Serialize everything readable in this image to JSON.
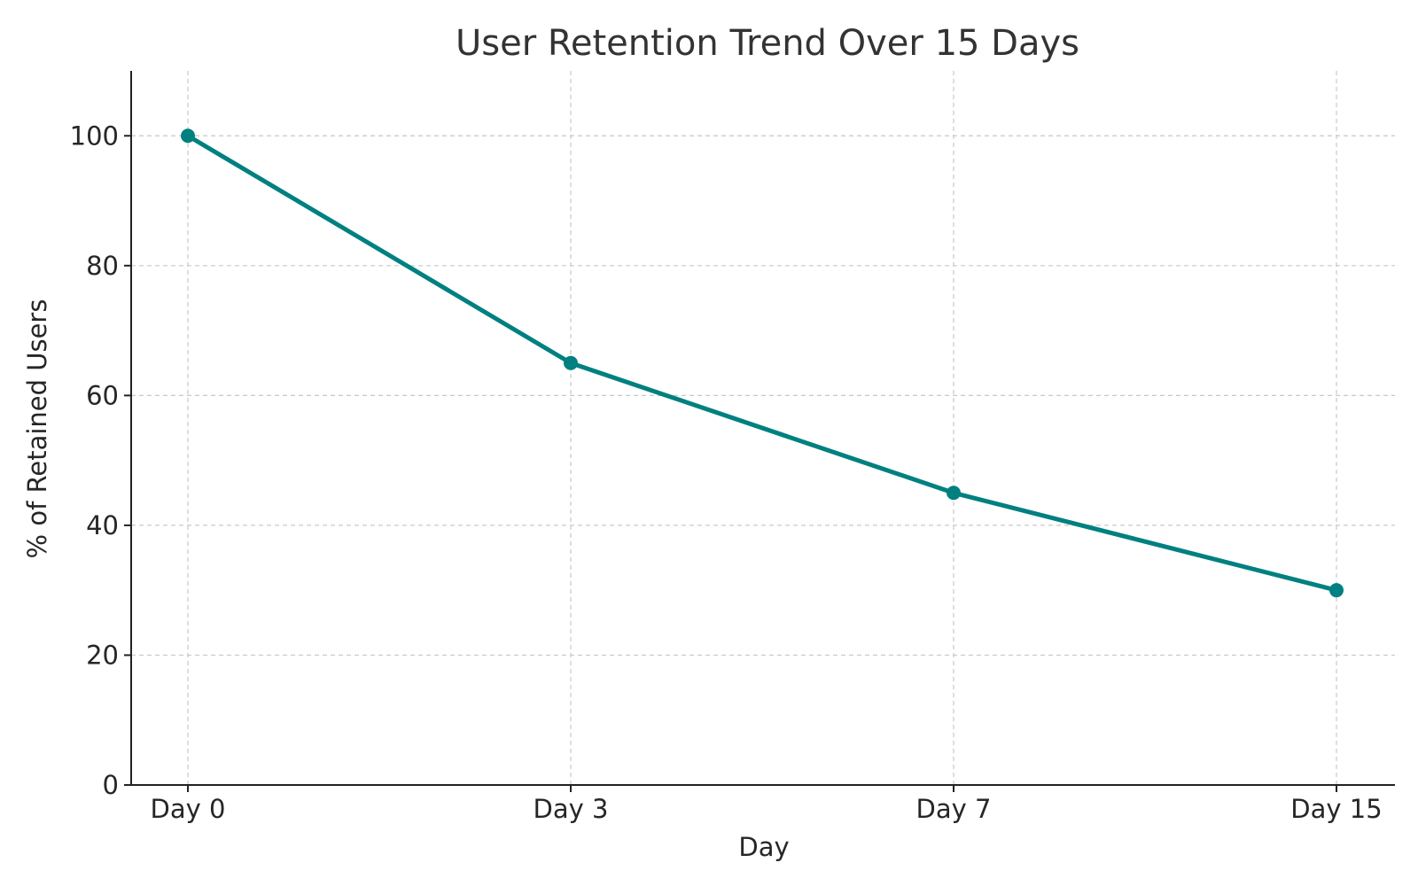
{
  "chart_data": {
    "type": "line",
    "title": "User Retention Trend Over 15 Days",
    "xlabel": "Day",
    "ylabel": "% of Retained Users",
    "categories": [
      "Day 0",
      "Day 3",
      "Day 7",
      "Day 15"
    ],
    "series": [
      {
        "values": [
          100,
          65,
          45,
          30
        ],
        "color": "#008080"
      }
    ],
    "ylim": [
      0,
      110
    ],
    "yticks": [
      0,
      20,
      40,
      60,
      80,
      100
    ],
    "grid": true,
    "legend": "none"
  }
}
